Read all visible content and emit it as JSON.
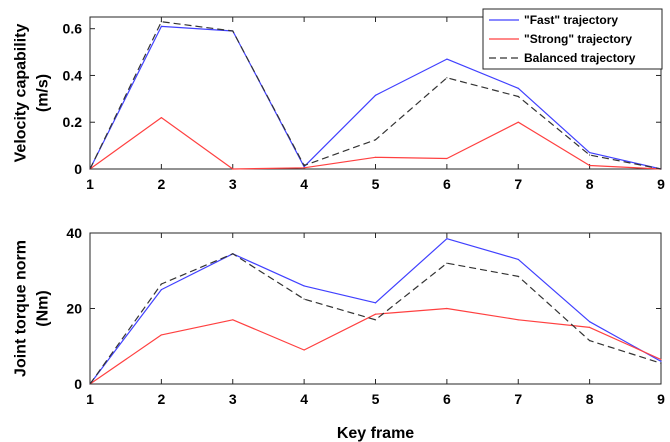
{
  "chart_data": [
    {
      "type": "line",
      "x": [
        1,
        2,
        3,
        4,
        5,
        6,
        7,
        8,
        9
      ],
      "xticks": [
        "1",
        "2",
        "3",
        "4",
        "5",
        "6",
        "7",
        "8",
        "9"
      ],
      "xlim": [
        1,
        9
      ],
      "ylabel_lines": [
        "Velocity capability",
        "(m/s)"
      ],
      "ylim": [
        0,
        0.65
      ],
      "yticks": [
        0,
        0.2,
        0.4,
        0.6
      ],
      "ytick_labels": [
        "0",
        "0.2",
        "0.4",
        "0.6"
      ],
      "legend_position": "top-right",
      "grid": false,
      "series": [
        {
          "name": "\"Fast\" trajectory",
          "color": "#4040ff",
          "dash": "solid",
          "values": [
            0,
            0.61,
            0.59,
            0.01,
            0.315,
            0.47,
            0.345,
            0.07,
            0
          ]
        },
        {
          "name": "\"Strong\" trajectory",
          "color": "#ff4040",
          "dash": "solid",
          "values": [
            0,
            0.22,
            0,
            0.005,
            0.05,
            0.045,
            0.2,
            0.015,
            0
          ]
        },
        {
          "name": "Balanced trajectory",
          "color": "#333333",
          "dash": "dashed",
          "values": [
            0,
            0.63,
            0.59,
            0.015,
            0.125,
            0.39,
            0.31,
            0.06,
            0
          ]
        }
      ]
    },
    {
      "type": "line",
      "x": [
        1,
        2,
        3,
        4,
        5,
        6,
        7,
        8,
        9
      ],
      "xticks": [
        "1",
        "2",
        "3",
        "4",
        "5",
        "6",
        "7",
        "8",
        "9"
      ],
      "xlim": [
        1,
        9
      ],
      "xlabel": "Key frame",
      "ylabel_lines": [
        "Joint torque norm",
        "(Nm)"
      ],
      "ylim": [
        0,
        40
      ],
      "yticks": [
        0,
        20,
        40
      ],
      "ytick_labels": [
        "0",
        "20",
        "40"
      ],
      "grid": false,
      "series": [
        {
          "color": "#4040ff",
          "dash": "solid",
          "values": [
            0,
            25,
            34.5,
            26,
            21.5,
            38.5,
            33,
            16.5,
            6
          ]
        },
        {
          "color": "#ff4040",
          "dash": "solid",
          "values": [
            0,
            13,
            17,
            9,
            18.5,
            20,
            17,
            15,
            6.5
          ]
        },
        {
          "color": "#333333",
          "dash": "dashed",
          "values": [
            0,
            26.5,
            34.5,
            22.5,
            17,
            32,
            28.5,
            11.5,
            5.5
          ]
        }
      ]
    }
  ]
}
